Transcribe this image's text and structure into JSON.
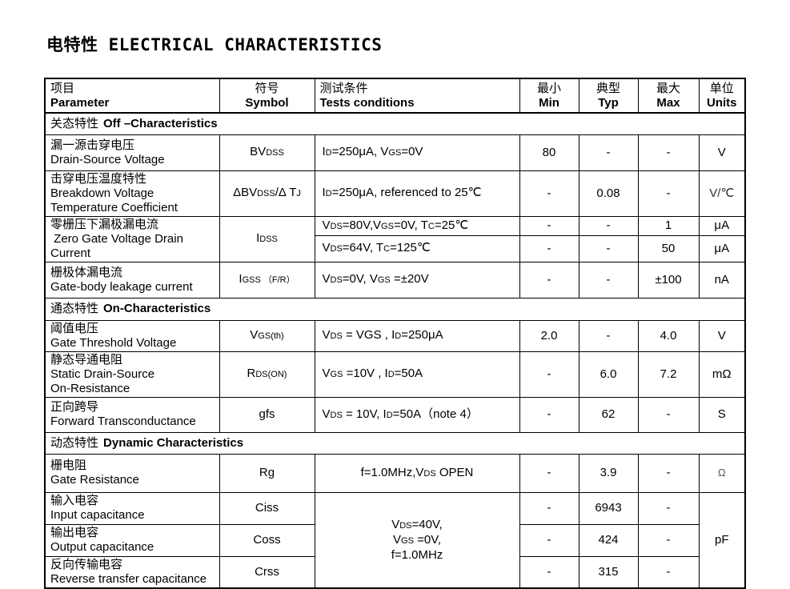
{
  "title": "电特性 ELECTRICAL CHARACTERISTICS",
  "table": {
    "header": {
      "param_zh": "项目",
      "param_en": "Parameter",
      "symbol_zh": "符号",
      "symbol_en": "Symbol",
      "cond_zh": "测试条件",
      "cond_en": "Tests conditions",
      "min_zh": "最小",
      "min_en": "Min",
      "typ_zh": "典型",
      "typ_en": "Typ",
      "max_zh": "最大",
      "max_en": "Max",
      "units_zh": "单位",
      "units_en": "Units"
    },
    "sections": {
      "off": {
        "zh": "关态特性",
        "en": "Off –Characteristics"
      },
      "on": {
        "zh": "通态特性",
        "en": "On-Characteristics"
      },
      "dynamic": {
        "zh": "动态特性",
        "en": "Dynamic Characteristics"
      }
    },
    "rows": {
      "bvdss": {
        "zh": "漏一源击穿电压",
        "en": "Drain-Source Voltage",
        "symbol": "BV{DSS}",
        "cond": "I{D}=250μA, V{GS}=0V",
        "min": "80",
        "typ": "-",
        "max": "-",
        "unit": "V"
      },
      "dbvdss": {
        "zh": "击穿电压温度特性",
        "en": "Breakdown Voltage\nTemperature Coefficient",
        "symbol": "ΔBV{DSS}/Δ T{J}",
        "cond": "I{D}=250μA, referenced to 25℃",
        "min": "-",
        "typ": "0.08",
        "max": "-",
        "unit": "V/℃"
      },
      "idss": {
        "zh": "零栅压下漏极漏电流",
        "en": " Zero Gate Voltage Drain\nCurrent",
        "symbol": "I{DSS}",
        "sub1": {
          "cond": "V{DS}=80V,V{GS}=0V, T{C}=25℃",
          "min": "-",
          "typ": "-",
          "max": "1",
          "unit": "μA"
        },
        "sub2": {
          "cond": "V{DS}=64V, T{C}=125℃",
          "min": "-",
          "typ": "-",
          "max": "50",
          "unit": "μA"
        }
      },
      "igss": {
        "zh": "栅极体漏电流",
        "en": "Gate-body leakage current",
        "symbol": "I{GSS （F/R）}",
        "cond": "V{DS}=0V, V{GS} =±20V",
        "min": "-",
        "typ": "-",
        "max": "±100",
        "unit": "nA"
      },
      "vgsth": {
        "zh": "阈值电压",
        "en": "Gate Threshold Voltage",
        "symbol": "V{GS(th)}",
        "cond": "V{DS} = VGS , I{D}=250μA",
        "min": "2.0",
        "typ": "-",
        "max": "4.0",
        "unit": "V"
      },
      "rdson": {
        "zh": "静态导通电阻",
        "en": "Static Drain-Source\nOn-Resistance",
        "symbol": "R{DS(ON)}",
        "cond": "V{GS} =10V , I{D}=50A",
        "min": "-",
        "typ": "6.0",
        "max": "7.2",
        "unit": "mΩ"
      },
      "gfs": {
        "zh": "正向跨导",
        "en": "Forward Transconductance",
        "symbol": "gfs",
        "cond": "V{DS} = 10V, I{D}=50A（note 4）",
        "min": "-",
        "typ": "62",
        "max": "-",
        "unit": "S"
      },
      "rg": {
        "zh": "栅电阻",
        "en": "Gate Resistance",
        "symbol": "Rg",
        "cond": "f=1.0MHz,V{DS} OPEN",
        "min": "-",
        "typ": "3.9",
        "max": "-",
        "unit": "Ω"
      },
      "ciss": {
        "zh": "输入电容",
        "en": "Input capacitance",
        "symbol": "Ciss",
        "min": "-",
        "typ": "6943",
        "max": "-"
      },
      "coss": {
        "zh": "输出电容",
        "en": "Output capacitance",
        "symbol": "Coss",
        "min": "-",
        "typ": "424",
        "max": "-"
      },
      "crss": {
        "zh": "反向传输电容",
        "en": "Reverse transfer capacitance",
        "symbol": "Crss",
        "min": "-",
        "typ": "315",
        "max": "-"
      },
      "cap_shared": {
        "cond": "V{DS}=40V,\nV{GS} =0V,\nf=1.0MHz",
        "unit": "pF"
      }
    }
  }
}
